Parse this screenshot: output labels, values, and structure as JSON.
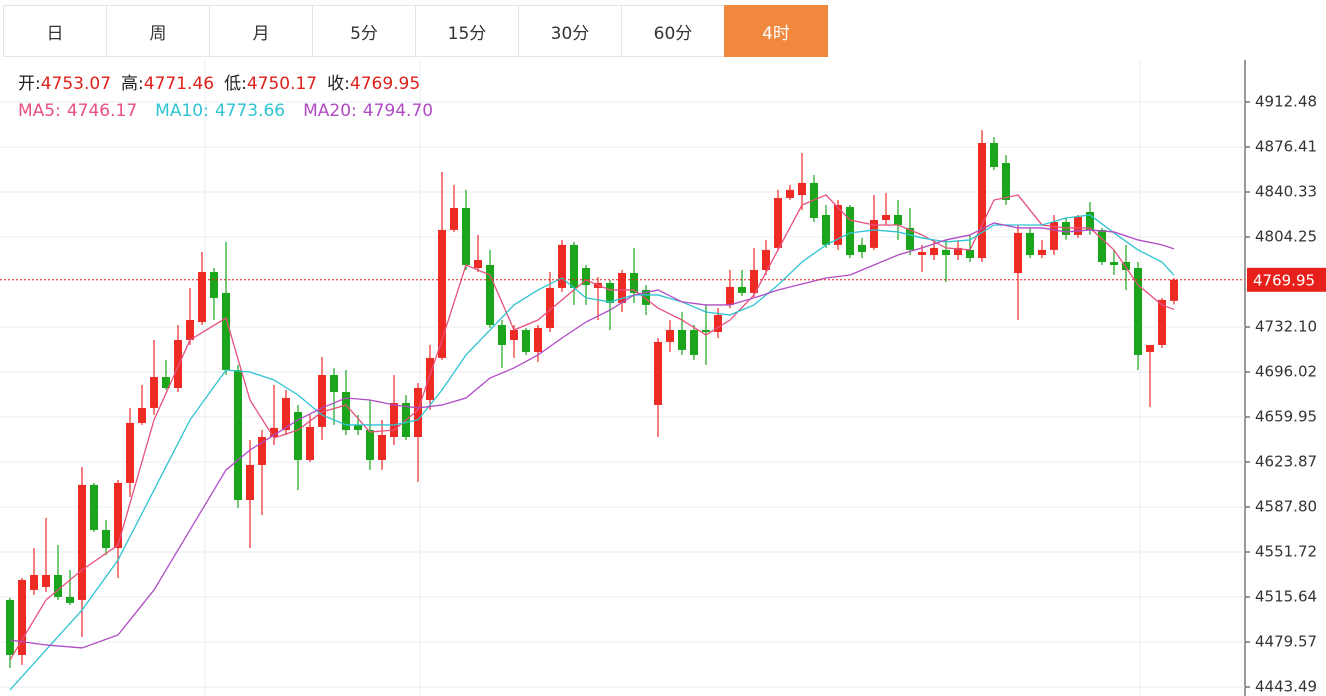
{
  "tabs": [
    "日",
    "周",
    "月",
    "5分",
    "15分",
    "30分",
    "60分",
    "4时"
  ],
  "active_tab": 7,
  "chart_data": {
    "type": "candlestick",
    "info": [
      {
        "label": "开:",
        "value": "4753.07"
      },
      {
        "label": "高:",
        "value": "4771.46"
      },
      {
        "label": "低:",
        "value": "4750.17"
      },
      {
        "label": "收:",
        "value": "4769.95"
      }
    ],
    "up_color": "#ee2a24",
    "down_color": "#1aa51a",
    "open": [
      4513.3,
      4469.2,
      4521.3,
      4523.7,
      4533.3,
      4515.7,
      4513.3,
      4605.5,
      4569.4,
      4554.9,
      4607.1,
      4655.2,
      4667.2,
      4692.0,
      4683.2,
      4721.7,
      4736.1,
      4776.2,
      4759.4,
      4697.6,
      4593.4,
      4621.5,
      4643.9,
      4649.5,
      4664.0,
      4625.5,
      4652.0,
      4693.6,
      4680.0,
      4653.6,
      4649.5,
      4625.5,
      4643.9,
      4671.2,
      4643.9,
      4673.6,
      4707.3,
      4809.9,
      4827.5,
      4779.4,
      4781.8,
      4733.7,
      4721.7,
      4729.7,
      4712.1,
      4731.3,
      4763.4,
      4797.9,
      4779.4,
      4763.4,
      4767.4,
      4751.4,
      4775.4,
      4761.8,
      4669.6,
      4720.1,
      4729.7,
      4729.7,
      4729.7,
      4728.1,
      4749.8,
      4764.2,
      4759.4,
      4777.8,
      4795.5,
      4835.5,
      4837.9,
      4847.6,
      4821.9,
      4797.9,
      4828.3,
      4797.9,
      4795.5,
      4817.9,
      4821.9,
      4811.5,
      4789.8,
      4789.8,
      4793.9,
      4789.8,
      4793.9,
      4787.4,
      4879.6,
      4863.6,
      4775.4,
      4807.5,
      4789.8,
      4793.9,
      4816.3,
      4805.9,
      4824.3,
      4809.9,
      4784.2,
      4784.2,
      4779.4,
      4712.1,
      4717.7,
      4753.07
    ],
    "high": [
      4514.9,
      4530.9,
      4554.9,
      4579.0,
      4557.3,
      4537.3,
      4619.9,
      4607.1,
      4577.4,
      4609.5,
      4667.2,
      4685.6,
      4721.7,
      4705.7,
      4733.7,
      4763.4,
      4792.2,
      4779.4,
      4800.3,
      4701.7,
      4641.5,
      4649.5,
      4685.6,
      4681.6,
      4669.6,
      4661.6,
      4708.1,
      4699.3,
      4697.6,
      4661.6,
      4673.6,
      4657.6,
      4693.6,
      4677.6,
      4687.2,
      4717.7,
      4856.4,
      4846.0,
      4842.0,
      4805.9,
      4793.9,
      4737.7,
      4733.7,
      4731.3,
      4733.7,
      4776.2,
      4801.9,
      4800.3,
      4781.8,
      4772.2,
      4769.8,
      4777.8,
      4795.5,
      4765.8,
      4723.3,
      4737.7,
      4744.1,
      4733.7,
      4749.8,
      4747.3,
      4777.8,
      4777.8,
      4795.5,
      4801.9,
      4842.0,
      4846.0,
      4871.6,
      4854.0,
      4829.9,
      4833.9,
      4829.9,
      4803.5,
      4837.9,
      4839.5,
      4833.9,
      4827.5,
      4797.9,
      4801.9,
      4801.9,
      4801.9,
      4805.9,
      4890.0,
      4884.4,
      4870.0,
      4813.9,
      4811.5,
      4801.9,
      4821.9,
      4819.5,
      4821.9,
      4832.3,
      4811.5,
      4793.9,
      4797.9,
      4784.2,
      4717.7,
      4755.4,
      4771.46
    ],
    "low": [
      4458.7,
      4461.2,
      4517.3,
      4519.7,
      4513.3,
      4509.2,
      4483.6,
      4567.8,
      4549.3,
      4530.9,
      4595.8,
      4653.6,
      4661.6,
      4681.6,
      4680.0,
      4717.7,
      4733.7,
      4737.7,
      4693.6,
      4587.0,
      4554.9,
      4581.4,
      4637.5,
      4645.5,
      4601.4,
      4623.9,
      4641.5,
      4653.6,
      4645.5,
      4645.5,
      4617.5,
      4617.5,
      4637.5,
      4641.5,
      4607.9,
      4665.6,
      4705.7,
      4808.3,
      4777.8,
      4776.2,
      4731.3,
      4699.3,
      4707.3,
      4709.7,
      4704.1,
      4728.1,
      4760.2,
      4749.8,
      4749.8,
      4737.7,
      4729.7,
      4744.1,
      4751.4,
      4741.7,
      4643.9,
      4712.1,
      4709.7,
      4705.7,
      4701.7,
      4723.3,
      4747.3,
      4757.0,
      4756.2,
      4773.8,
      4793.9,
      4833.9,
      4825.9,
      4816.3,
      4795.5,
      4793.9,
      4787.4,
      4787.4,
      4793.9,
      4813.9,
      4801.9,
      4789.8,
      4776.2,
      4785.8,
      4768.2,
      4785.8,
      4784.2,
      4784.2,
      4858.0,
      4829.9,
      4737.7,
      4787.4,
      4787.4,
      4789.8,
      4801.9,
      4803.5,
      4805.9,
      4781.8,
      4773.8,
      4761.8,
      4697.6,
      4668.0,
      4715.3,
      4750.17
    ],
    "close": [
      4469.2,
      4529.3,
      4533.3,
      4533.3,
      4515.7,
      4510.9,
      4605.5,
      4569.4,
      4554.9,
      4607.1,
      4655.2,
      4667.2,
      4692.0,
      4683.2,
      4721.7,
      4737.7,
      4776.2,
      4755.4,
      4697.6,
      4593.4,
      4621.5,
      4643.9,
      4651.2,
      4675.2,
      4625.5,
      4652.0,
      4693.6,
      4680.0,
      4649.5,
      4649.5,
      4625.5,
      4645.5,
      4671.2,
      4643.9,
      4683.2,
      4707.3,
      4809.9,
      4827.5,
      4781.8,
      4785.8,
      4733.7,
      4717.7,
      4729.7,
      4712.1,
      4731.3,
      4763.4,
      4797.9,
      4763.4,
      4765.8,
      4767.4,
      4751.4,
      4775.4,
      4759.4,
      4749.8,
      4720.1,
      4729.7,
      4713.7,
      4709.7,
      4728.1,
      4741.7,
      4764.2,
      4759.4,
      4777.8,
      4793.9,
      4835.5,
      4842.0,
      4847.6,
      4819.5,
      4797.9,
      4829.9,
      4789.8,
      4792.2,
      4817.9,
      4821.9,
      4813.9,
      4793.9,
      4792.2,
      4795.5,
      4789.8,
      4795.5,
      4787.4,
      4879.6,
      4860.4,
      4833.9,
      4807.5,
      4789.8,
      4793.9,
      4816.3,
      4805.9,
      4820.3,
      4809.9,
      4784.2,
      4781.8,
      4777.8,
      4709.7,
      4717.7,
      4753.8,
      4769.95
    ],
    "series": [
      {
        "name": "MA5:",
        "value_label": "4746.17",
        "color": "#e8507e",
        "x": [
          0,
          3,
          6,
          9,
          12,
          15,
          18,
          20,
          22,
          24,
          26,
          28,
          30,
          32,
          34,
          36,
          38,
          40,
          42,
          44,
          46,
          48,
          50,
          52,
          54,
          56,
          58,
          60,
          62,
          64,
          66,
          68,
          70,
          72,
          74,
          76,
          78,
          80,
          82,
          84,
          86,
          88,
          90,
          92,
          94,
          96,
          97
        ],
        "values": [
          4465.2,
          4513.3,
          4537.3,
          4557.3,
          4657.6,
          4721.7,
          4739.3,
          4673.6,
          4643.1,
          4649.5,
          4664.0,
          4669.6,
          4647.9,
          4649.5,
          4665.6,
          4721.7,
          4781.8,
          4773.8,
          4729.7,
          4737.7,
          4753.8,
          4769.8,
          4761.8,
          4761.8,
          4747.3,
          4737.7,
          4725.7,
          4737.7,
          4757.8,
          4793.9,
          4829.9,
          4837.9,
          4817.9,
          4813.9,
          4813.9,
          4805.9,
          4795.5,
          4793.9,
          4833.9,
          4837.9,
          4813.9,
          4811.5,
          4811.5,
          4793.9,
          4765.8,
          4749.8,
          4746.17
        ]
      },
      {
        "name": "MA10:",
        "value_label": "4773.66",
        "color": "#2fc3d3",
        "x": [
          0,
          3,
          6,
          9,
          12,
          15,
          18,
          20,
          22,
          24,
          26,
          28,
          30,
          32,
          34,
          36,
          38,
          40,
          42,
          44,
          46,
          48,
          50,
          52,
          54,
          56,
          58,
          60,
          62,
          64,
          66,
          68,
          70,
          72,
          74,
          76,
          78,
          80,
          82,
          84,
          86,
          88,
          90,
          92,
          94,
          96,
          97
        ],
        "values": [
          4441.1,
          4473.2,
          4505.2,
          4545.3,
          4601.4,
          4657.6,
          4697.6,
          4696.0,
          4689.6,
          4677.6,
          4661.6,
          4653.6,
          4653.6,
          4653.6,
          4657.6,
          4681.6,
          4709.7,
          4729.7,
          4749.8,
          4761.8,
          4771.4,
          4755.4,
          4752.2,
          4757.8,
          4757.8,
          4752.2,
          4744.1,
          4741.7,
          4749.8,
          4765.8,
          4784.2,
          4797.9,
          4807.5,
          4809.9,
          4808.3,
          4803.5,
          4800.3,
          4801.9,
          4813.9,
          4813.9,
          4813.9,
          4819.5,
          4821.9,
          4807.5,
          4793.9,
          4784.2,
          4773.66
        ]
      },
      {
        "name": "MA20:",
        "value_label": "4794.70",
        "color": "#b04bc4",
        "x": [
          0,
          3,
          6,
          9,
          12,
          15,
          18,
          20,
          22,
          24,
          26,
          28,
          30,
          32,
          34,
          36,
          38,
          40,
          42,
          44,
          46,
          48,
          50,
          52,
          54,
          56,
          58,
          60,
          62,
          64,
          66,
          68,
          70,
          72,
          74,
          76,
          78,
          80,
          82,
          84,
          86,
          88,
          90,
          92,
          94,
          96,
          97
        ],
        "values": [
          4481.2,
          4477.2,
          4474.8,
          4485.2,
          4521.3,
          4569.4,
          4617.5,
          4633.5,
          4645.5,
          4657.6,
          4667.2,
          4675.2,
          4673.6,
          4669.6,
          4667.2,
          4669.6,
          4675.2,
          4691.2,
          4699.3,
          4709.7,
          4723.3,
          4736.1,
          4745.7,
          4757.8,
          4761.8,
          4752.2,
          4749.8,
          4749.8,
          4755.4,
          4761.8,
          4766.6,
          4771.4,
          4773.8,
          4781.8,
          4789.8,
          4795.5,
          4801.9,
          4805.9,
          4815.5,
          4811.5,
          4811.5,
          4808.3,
          4809.9,
          4808.3,
          4801.9,
          4797.9,
          4794.7
        ]
      }
    ],
    "last_price": {
      "value": 4769.95,
      "label": "4769.95",
      "color": "#e8201b"
    },
    "ylim": [
      4436.28,
      4946.15
    ],
    "yticks": [
      4443.49,
      4479.57,
      4515.64,
      4551.72,
      {
        "value": 4587.8,
        "label": "4587.80"
      },
      4623.87,
      4659.95,
      4696.02,
      {
        "value": 4732.1,
        "label": "4732.10"
      },
      4804.25,
      4840.33,
      4876.41,
      4912.48
    ],
    "grid": true
  }
}
